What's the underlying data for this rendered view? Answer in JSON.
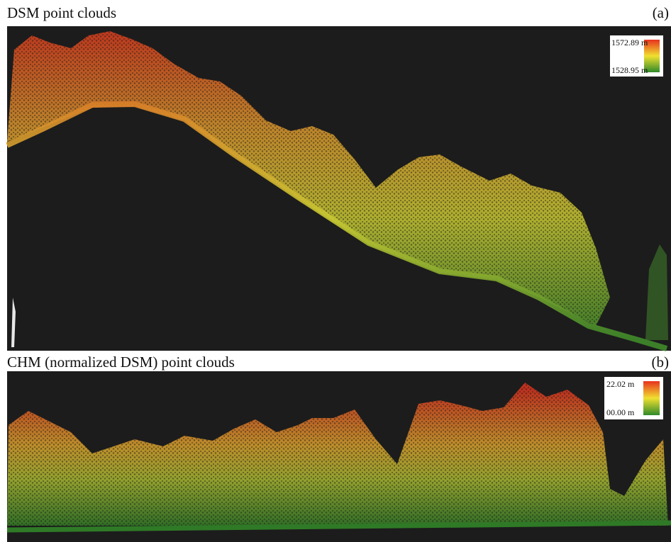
{
  "panels": [
    {
      "title": "DSM point clouds",
      "label": "(a)",
      "legend": {
        "max": "1572.89 m",
        "min": "1528.95 m"
      }
    },
    {
      "title": "CHM (normalized DSM)  point clouds",
      "label": "(b)",
      "legend": {
        "max": "22.02 m",
        "min": "00.00 m"
      }
    }
  ]
}
